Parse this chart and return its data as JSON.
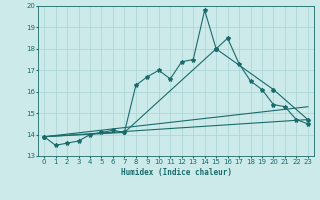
{
  "xlabel": "Humidex (Indice chaleur)",
  "ylabel": "",
  "bg_color": "#cdeaea",
  "grid_color": "#a8d4d4",
  "line_color": "#1a6b6b",
  "xlim": [
    -0.5,
    23.5
  ],
  "ylim": [
    13,
    20
  ],
  "xticks": [
    0,
    1,
    2,
    3,
    4,
    5,
    6,
    7,
    8,
    9,
    10,
    11,
    12,
    13,
    14,
    15,
    16,
    17,
    18,
    19,
    20,
    21,
    22,
    23
  ],
  "yticks": [
    13,
    14,
    15,
    16,
    17,
    18,
    19,
    20
  ],
  "series": {
    "line1": {
      "x": [
        0,
        1,
        2,
        3,
        4,
        5,
        6,
        7,
        8,
        9,
        10,
        11,
        12,
        13,
        14,
        15,
        16,
        17,
        18,
        19,
        20,
        21,
        22,
        23
      ],
      "y": [
        13.9,
        13.5,
        13.6,
        13.7,
        14.0,
        14.1,
        14.2,
        14.1,
        16.3,
        16.7,
        17.0,
        16.6,
        17.4,
        17.5,
        19.8,
        18.0,
        18.5,
        17.3,
        16.5,
        16.1,
        15.4,
        15.3,
        14.7,
        14.5
      ]
    },
    "line2": {
      "x": [
        0,
        7,
        15,
        20,
        23
      ],
      "y": [
        13.9,
        14.1,
        18.0,
        16.1,
        14.7
      ]
    },
    "line3": {
      "x": [
        0,
        23
      ],
      "y": [
        13.9,
        14.7
      ]
    },
    "line4": {
      "x": [
        0,
        23
      ],
      "y": [
        13.9,
        15.3
      ]
    }
  }
}
